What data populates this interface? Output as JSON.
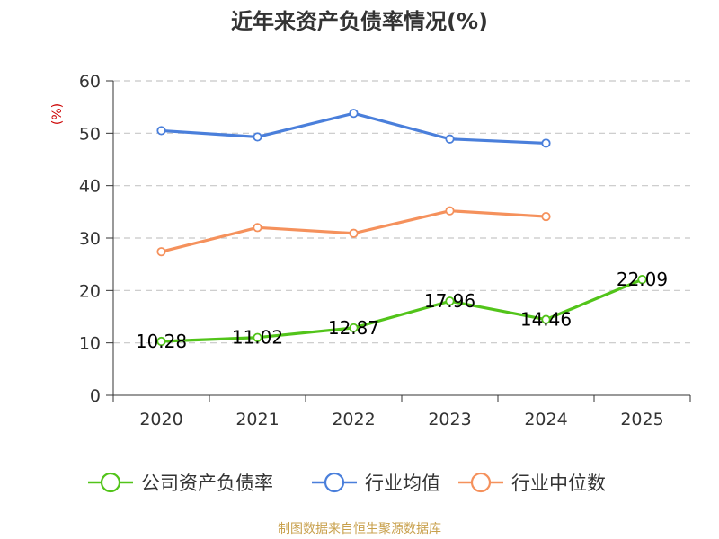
{
  "chart_data": {
    "type": "line",
    "title": "近年来资产负债率情况(%)",
    "ylabel": "(%)",
    "xlabel": "",
    "categories": [
      "2020",
      "2021",
      "2022",
      "2023",
      "2024",
      "2025"
    ],
    "ylim": [
      0,
      60
    ],
    "yticks": [
      0,
      10,
      20,
      30,
      40,
      50,
      60
    ],
    "grid": true,
    "legend_position": "bottom",
    "series": [
      {
        "name": "公司资产负债率",
        "color": "#52c41a",
        "values": [
          10.28,
          11.02,
          12.87,
          17.96,
          14.46,
          22.09
        ],
        "labels": [
          "10.28",
          "11.02",
          "12.87",
          "17.96",
          "14.46",
          "22.09"
        ]
      },
      {
        "name": "行业均值",
        "color": "#4a7fdb",
        "values": [
          50.5,
          49.3,
          53.8,
          48.9,
          48.1,
          null
        ]
      },
      {
        "name": "行业中位数",
        "color": "#f5915c",
        "values": [
          27.4,
          32.0,
          30.9,
          35.2,
          34.1,
          null
        ]
      }
    ]
  },
  "source": "制图数据来自恒生聚源数据库"
}
